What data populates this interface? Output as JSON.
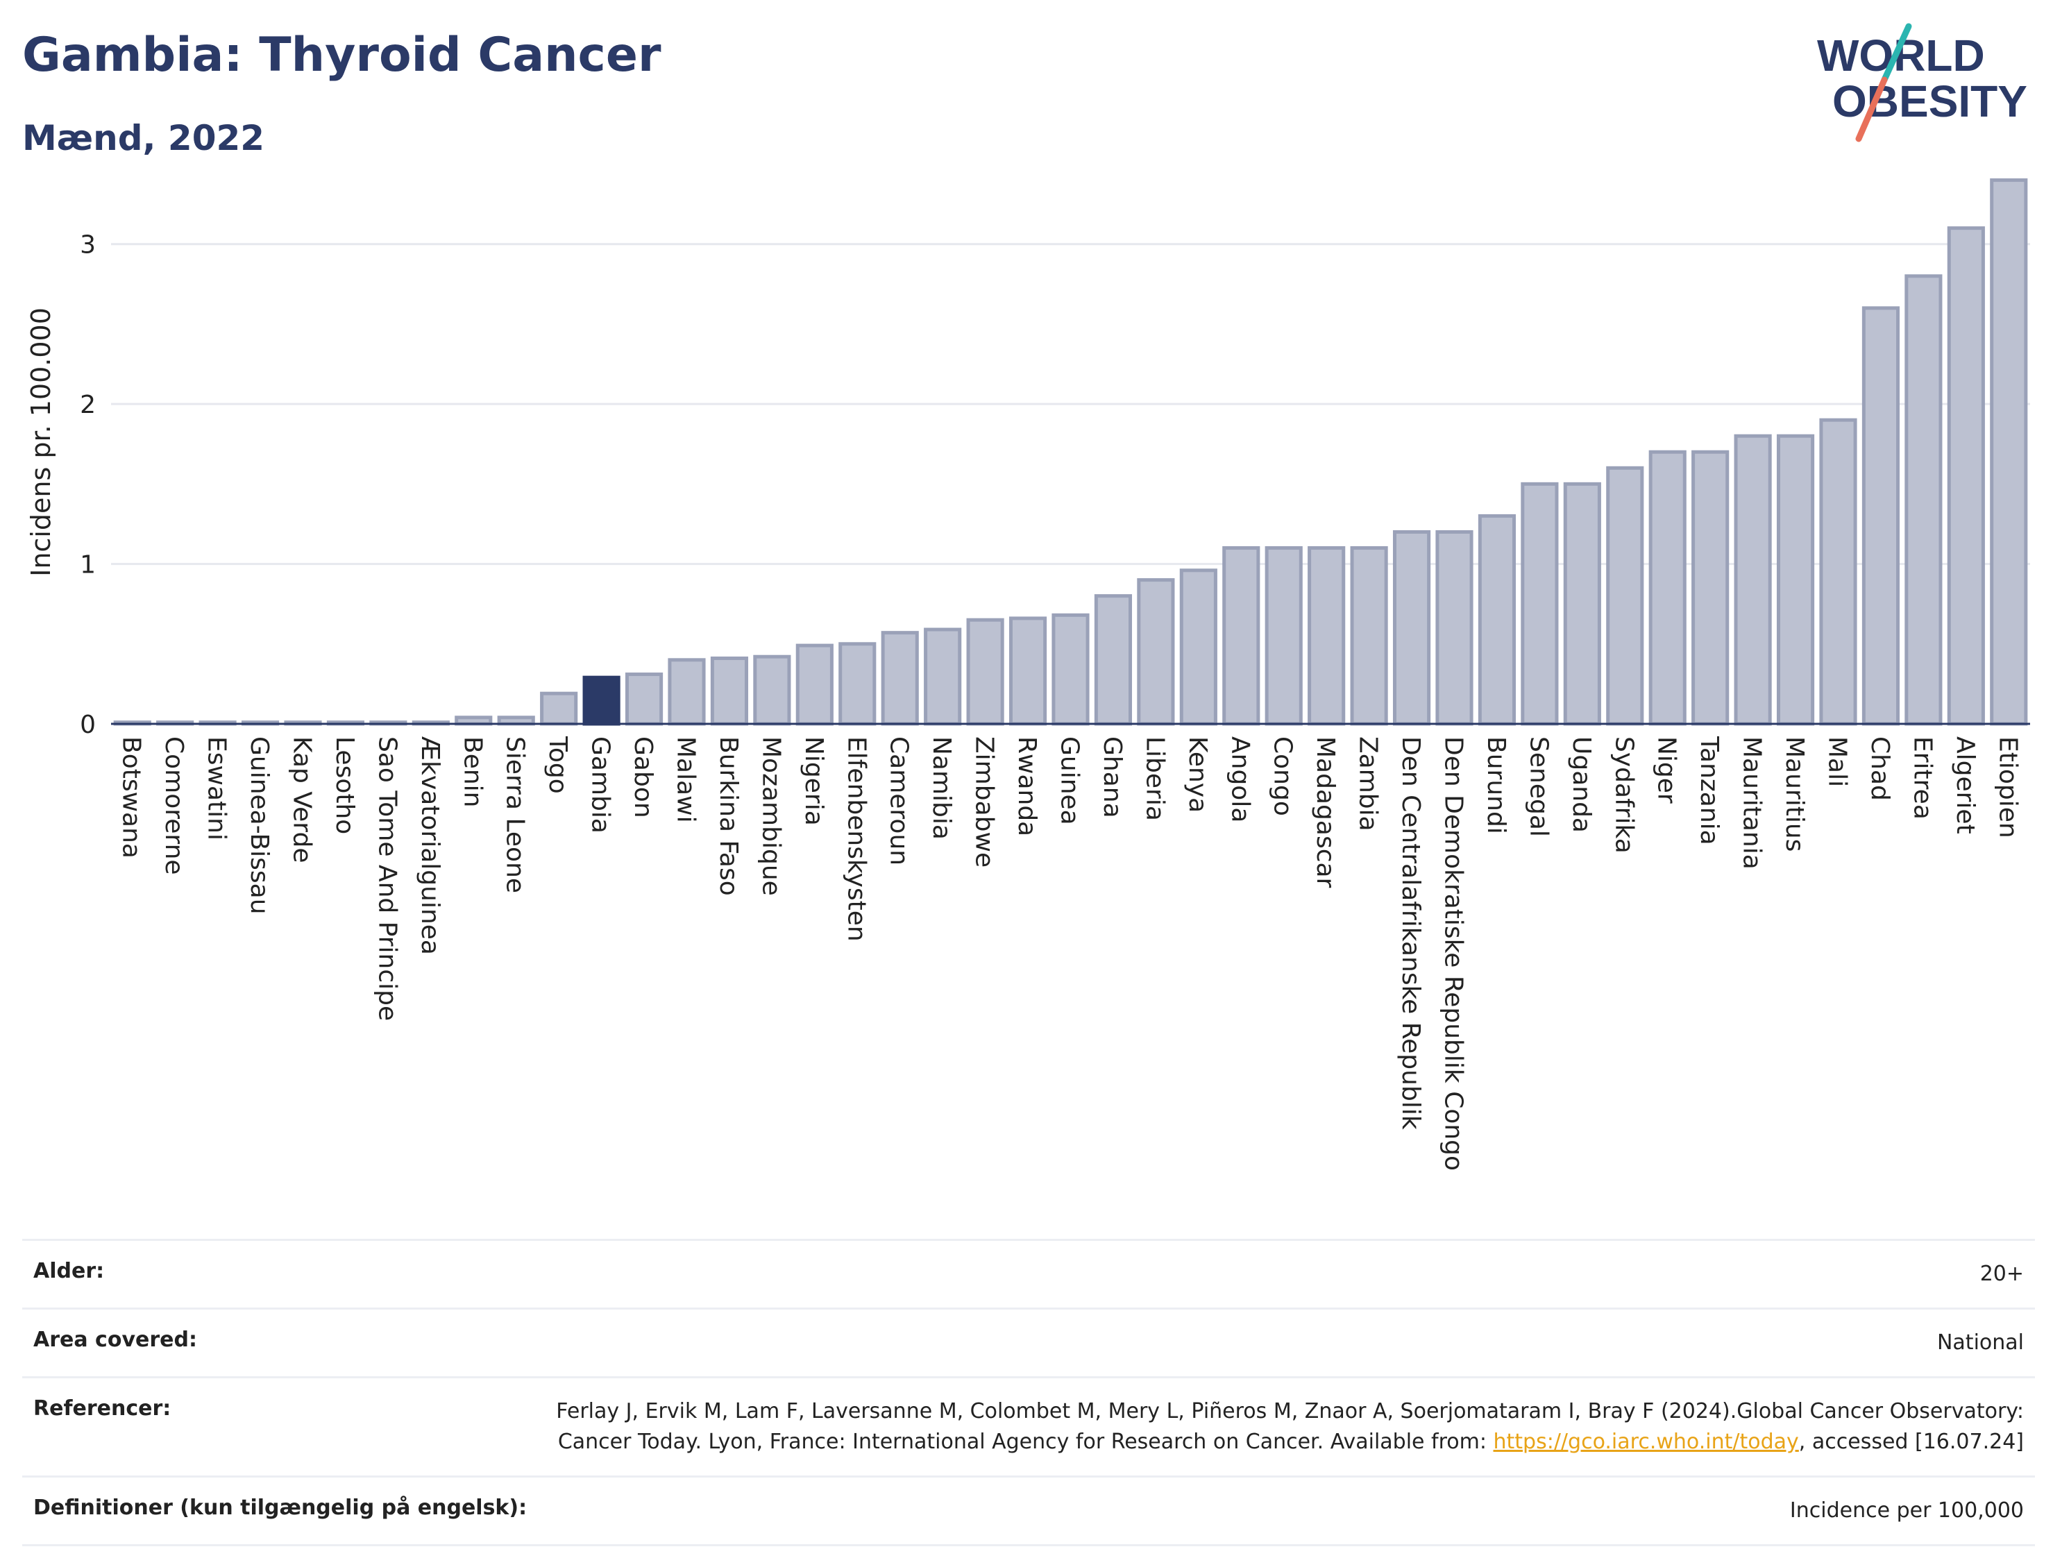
{
  "header": {
    "title": "Gambia: Thyroid Cancer",
    "subtitle": "Mænd, 2022",
    "logo_line1": "WORLD",
    "logo_line2": "OBESITY"
  },
  "colors": {
    "title": "#2b3a67",
    "bar_fill": "#bcc1d1",
    "bar_stroke": "#9aa1b8",
    "highlight": "#2b3a67",
    "grid": "#e6e8ee",
    "link": "#e8a317",
    "logo_teal": "#2bb5b0",
    "logo_red": "#e8705a"
  },
  "chart_data": {
    "type": "bar",
    "ylabel": "Incidens pr. 100.000",
    "ylim": [
      0,
      3.45
    ],
    "yticks": [
      0,
      1,
      2,
      3
    ],
    "grid": true,
    "highlight": "Gambia",
    "categories": [
      "Botswana",
      "Comorerne",
      "Eswatini",
      "Guinea-Bissau",
      "Kap Verde",
      "Lesotho",
      "Sao Tome And Principe",
      "Ækvatorialguinea",
      "Benin",
      "Sierra Leone",
      "Togo",
      "Gambia",
      "Gabon",
      "Malawi",
      "Burkina Faso",
      "Mozambique",
      "Nigeria",
      "Elfenbenskysten",
      "Cameroun",
      "Namibia",
      "Zimbabwe",
      "Rwanda",
      "Guinea",
      "Ghana",
      "Liberia",
      "Kenya",
      "Angola",
      "Congo",
      "Madagascar",
      "Zambia",
      "Den Centralafrikanske Republik",
      "Den Demokratiske Republik Congo",
      "Burundi",
      "Senegal",
      "Uganda",
      "Sydafrika",
      "Niger",
      "Tanzania",
      "Mauritania",
      "Mauritius",
      "Mali",
      "Chad",
      "Eritrea",
      "Algeriet",
      "Etiopien"
    ],
    "values": [
      0.01,
      0.01,
      0.01,
      0.01,
      0.01,
      0.01,
      0.01,
      0.01,
      0.04,
      0.04,
      0.19,
      0.29,
      0.31,
      0.4,
      0.41,
      0.42,
      0.49,
      0.5,
      0.57,
      0.59,
      0.65,
      0.66,
      0.68,
      0.8,
      0.9,
      0.96,
      1.1,
      1.1,
      1.1,
      1.1,
      1.2,
      1.2,
      1.3,
      1.5,
      1.5,
      1.6,
      1.7,
      1.7,
      1.8,
      1.8,
      1.9,
      2.6,
      2.8,
      3.1,
      3.4
    ]
  },
  "meta": {
    "age_label": "Alder:",
    "age_value": "20+",
    "area_label": "Area covered:",
    "area_value": "National",
    "ref_label": "Referencer:",
    "ref_text_1": "Ferlay J, Ervik M, Lam F, Laversanne M, Colombet M, Mery L, Piñeros M, Znaor A, Soerjomataram I, Bray F (2024).Global Cancer Observatory: Cancer Today. Lyon, France: International Agency for Research on Cancer. Available from: ",
    "ref_link": "https://gco.iarc.who.int/today",
    "ref_text_2": ", accessed [16.07.24]",
    "def_label": "Definitioner (kun tilgængelig på engelsk):",
    "def_value": "Incidence per 100,000"
  }
}
